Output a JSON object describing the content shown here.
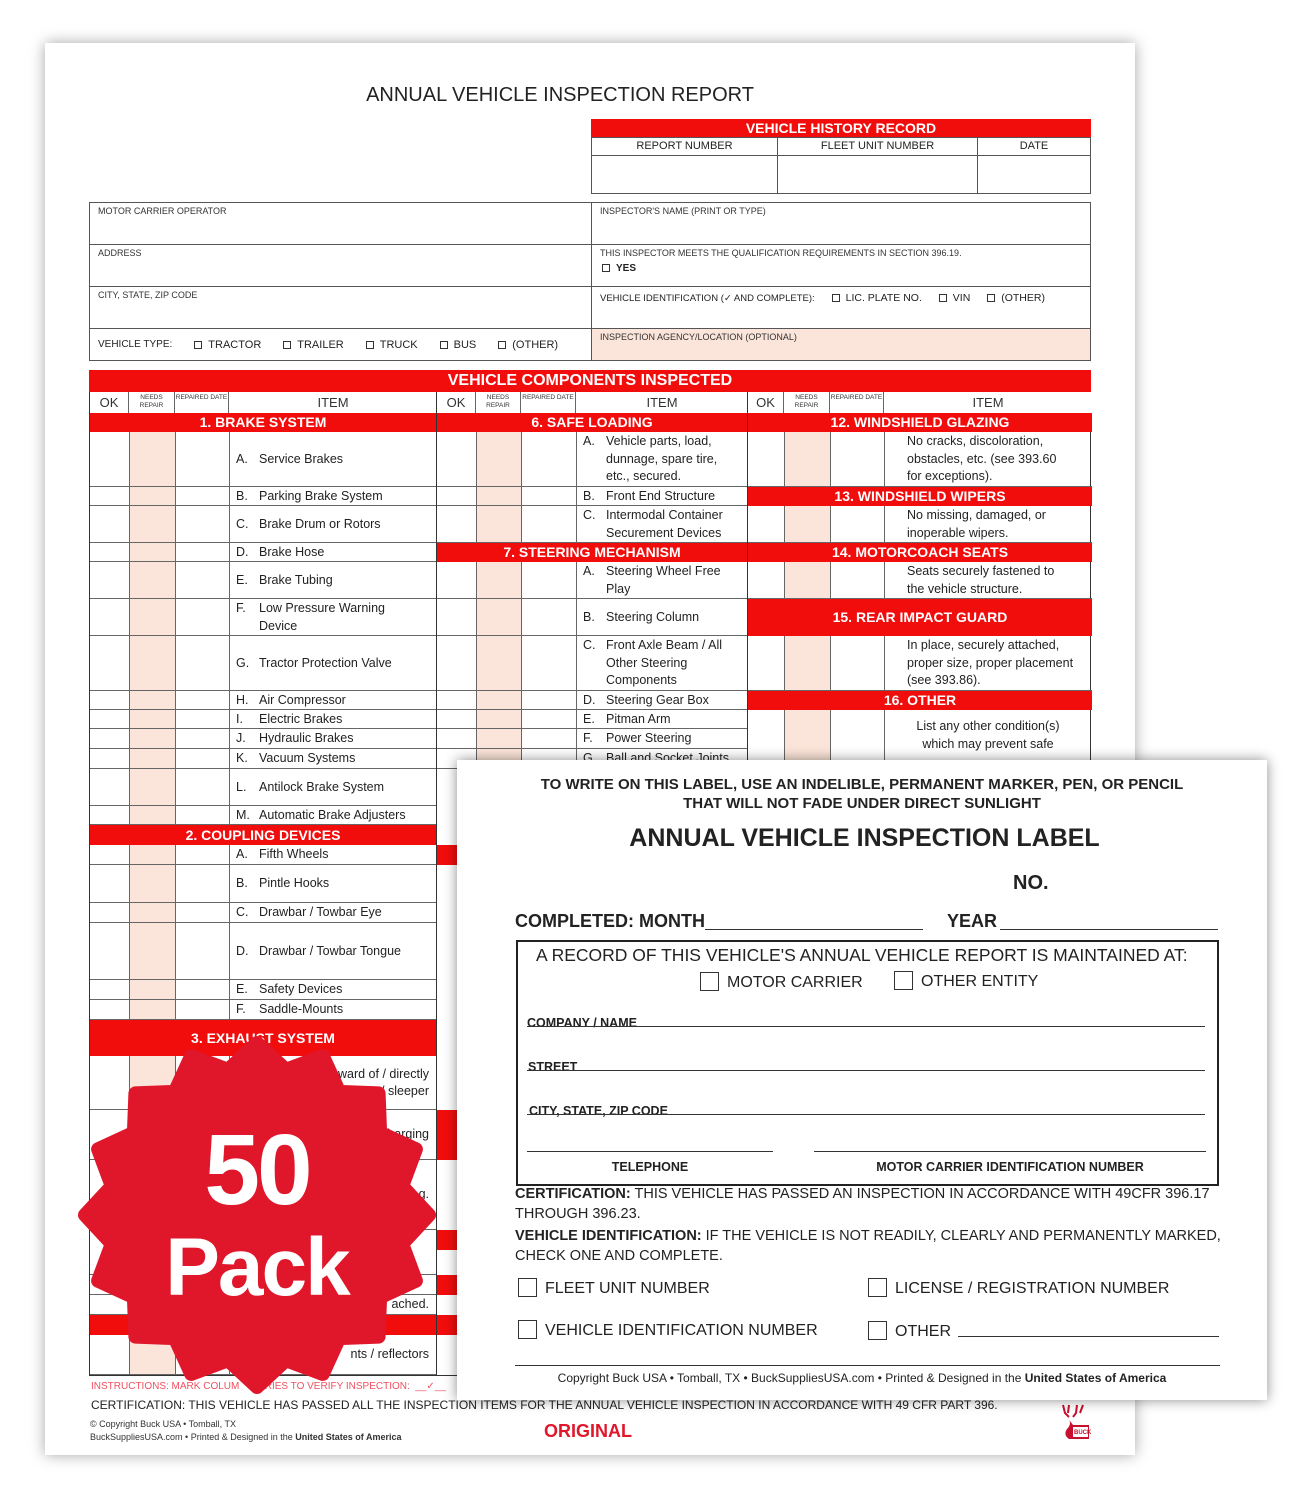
{
  "report": {
    "title": "ANNUAL VEHICLE INSPECTION REPORT",
    "history": {
      "header": "VEHICLE HISTORY RECORD",
      "columns": [
        "REPORT NUMBER",
        "FLEET UNIT NUMBER",
        "DATE"
      ]
    },
    "fields": {
      "motor_carrier": "MOTOR CARRIER OPERATOR",
      "address": "ADDRESS",
      "city": "CITY, STATE, ZIP CODE",
      "vehicle_type_label": "VEHICLE TYPE:",
      "vehicle_types": [
        "TRACTOR",
        "TRAILER",
        "TRUCK",
        "BUS",
        "(OTHER)"
      ],
      "inspector_name": "INSPECTOR'S NAME (PRINT OR TYPE)",
      "qualification": "THIS INSPECTOR MEETS THE QUALIFICATION REQUIREMENTS IN SECTION 396.19.",
      "yes": "YES",
      "vehicle_id_label": "VEHICLE IDENTIFICATION (✓ AND COMPLETE):",
      "vehicle_id_options": [
        "LIC. PLATE NO.",
        "VIN",
        "(OTHER)"
      ],
      "agency": "INSPECTION AGENCY/LOCATION (OPTIONAL)"
    },
    "components": {
      "header": "VEHICLE COMPONENTS INSPECTED",
      "col_headers": {
        "ok": "OK",
        "needs_repair": "NEEDS REPAIR",
        "repaired_date": "REPAIRED DATE",
        "item": "ITEM"
      },
      "columns": [
        [
          {
            "section": "1.  BRAKE SYSTEM"
          },
          {
            "letter": "A.",
            "text": "Service Brakes"
          },
          {
            "letter": "B.",
            "text": "Parking Brake System"
          },
          {
            "letter": "C.",
            "text": "Brake Drum or Rotors"
          },
          {
            "letter": "D.",
            "text": "Brake Hose"
          },
          {
            "letter": "E.",
            "text": "Brake Tubing"
          },
          {
            "letter": "F.",
            "text": "Low Pressure Warning\nDevice"
          },
          {
            "letter": "G.",
            "text": "Tractor Protection Valve"
          },
          {
            "letter": "H.",
            "text": "Air Compressor"
          },
          {
            "letter": "I.",
            "text": "Electric Brakes"
          },
          {
            "letter": "J.",
            "text": "Hydraulic Brakes"
          },
          {
            "letter": "K.",
            "text": "Vacuum Systems"
          },
          {
            "letter": "L.",
            "text": "Antilock Brake System"
          },
          {
            "letter": "M.",
            "text": "Automatic Brake Adjusters"
          },
          {
            "section": "2.  COUPLING DEVICES"
          },
          {
            "letter": "A.",
            "text": "Fifth Wheels"
          },
          {
            "letter": "B.",
            "text": "Pintle Hooks"
          },
          {
            "letter": "C.",
            "text": "Drawbar / Towbar Eye"
          },
          {
            "letter": "D.",
            "text": "Drawbar / Towbar Tongue"
          },
          {
            "letter": "E.",
            "text": "Safety Devices"
          },
          {
            "letter": "F.",
            "text": "Saddle-Mounts"
          },
          {
            "section": "3.  EXHAUST SYSTEM"
          },
          {
            "letter": "",
            "text": "ward of / directly\ner / sleeper",
            "right": true
          },
          {
            "letter": "",
            "text": "harging",
            "right": true
          },
          {
            "letter": "",
            "text": "g.",
            "right": true
          },
          {
            "letter": "",
            "text": ""
          },
          {
            "letter": "",
            "text": ""
          },
          {
            "letter": "",
            "text": "ached.",
            "right": true
          },
          {
            "section": ""
          },
          {
            "letter": "",
            "text": "nts / reflectors",
            "right": true
          }
        ],
        [
          {
            "section": "6.  SAFE LOADING"
          },
          {
            "letter": "A.",
            "text": "Vehicle parts, load,\ndunnage, spare tire,\netc., secured."
          },
          {
            "letter": "B.",
            "text": "Front End Structure"
          },
          {
            "letter": "C.",
            "text": "Intermodal Container\nSecurement Devices"
          },
          {
            "section": "7.  STEERING MECHANISM"
          },
          {
            "letter": "A.",
            "text": "Steering Wheel Free\nPlay"
          },
          {
            "letter": "B.",
            "text": "Steering Column"
          },
          {
            "letter": "C.",
            "text": "Front Axle Beam / All\nOther Steering\nComponents"
          },
          {
            "letter": "D.",
            "text": "Steering Gear Box"
          },
          {
            "letter": "E.",
            "text": "Pitman Arm"
          },
          {
            "letter": "F.",
            "text": "Power Steering"
          },
          {
            "letter": "G.",
            "text": "Ball and Socket Joints"
          }
        ],
        [
          {
            "section": "12.  WINDSHIELD GLAZING"
          },
          {
            "letter": "",
            "text": "No cracks, discoloration,\nobstacles, etc. (see 393.60\nfor exceptions)."
          },
          {
            "section": "13.  WINDSHIELD WIPERS"
          },
          {
            "letter": "",
            "text": "No missing, damaged, or\ninoperable wipers."
          },
          {
            "section": "14.  MOTORCOACH SEATS"
          },
          {
            "letter": "",
            "text": "Seats securely fastened to\nthe vehicle structure."
          },
          {
            "section": "15.  REAR IMPACT GUARD"
          },
          {
            "letter": "",
            "text": "In place, securely attached,\nproper size, proper placement\n(see 393.86)."
          },
          {
            "section": "16.  OTHER"
          },
          {
            "letter": "",
            "text": "List any other condition(s)\nwhich may prevent safe",
            "center": true
          }
        ]
      ]
    },
    "instructions": "INSTRUCTIONS: MARK COLUM       TRIES TO VERIFY INSPECTION:  __✓__",
    "certification": "CERTIFICATION: THIS VEHICLE HAS PASSED ALL THE INSPECTION ITEMS FOR THE ANNUAL VEHICLE INSPECTION IN ACCORDANCE WITH 49 CFR PART 396.",
    "copyright_line1": "© Copyright Buck USA • Tomball, TX",
    "copyright_line2": "BuckSuppliesUSA.com • Printed & Designed in the ",
    "copyright_country": "United States of America",
    "copy_type": "ORIGINAL",
    "logo_text": "BUCK SUPPLIES"
  },
  "badge": {
    "number": "50",
    "word": "Pack",
    "color": "#e0162b"
  },
  "label": {
    "notice_line1": "TO WRITE ON THIS LABEL, USE AN INDELIBLE, PERMANENT MARKER, PEN, OR PENCIL",
    "notice_line2": "THAT WILL NOT FADE UNDER DIRECT SUNLIGHT",
    "title": "ANNUAL VEHICLE INSPECTION LABEL",
    "no": "NO.",
    "completed_month": "COMPLETED: MONTH",
    "year": "YEAR",
    "record_text": "A RECORD OF THIS VEHICLE'S ANNUAL VEHICLE REPORT IS MAINTAINED AT:",
    "motor_carrier": "MOTOR CARRIER",
    "other_entity": "OTHER ENTITY",
    "company": "COMPANY / NAME",
    "street": "STREET",
    "city": "CITY, STATE, ZIP CODE",
    "telephone": "TELEPHONE",
    "mcin": "MOTOR CARRIER IDENTIFICATION NUMBER",
    "cert_label": "CERTIFICATION:",
    "cert_text": " THIS VEHICLE HAS PASSED AN INSPECTION IN ACCORDANCE WITH 49CFR 396.17 THROUGH 396.23.",
    "vid_label": "VEHICLE IDENTIFICATION:",
    "vid_text": " IF THE VEHICLE IS NOT READILY, CLEARLY AND PERMANENTLY MARKED, CHECK ONE AND COMPLETE.",
    "fleet": "FLEET UNIT NUMBER",
    "license": "LICENSE / REGISTRATION NUMBER",
    "vin": "VEHICLE IDENTIFICATION NUMBER",
    "other": "OTHER",
    "copyright": "Copyright Buck USA • Tomball, TX • BuckSuppliesUSA.com • Printed & Designed in the ",
    "copyright_country": "United States of America"
  },
  "colors": {
    "accent_red": "#f20d0d",
    "peach": "#fbe4d9"
  }
}
